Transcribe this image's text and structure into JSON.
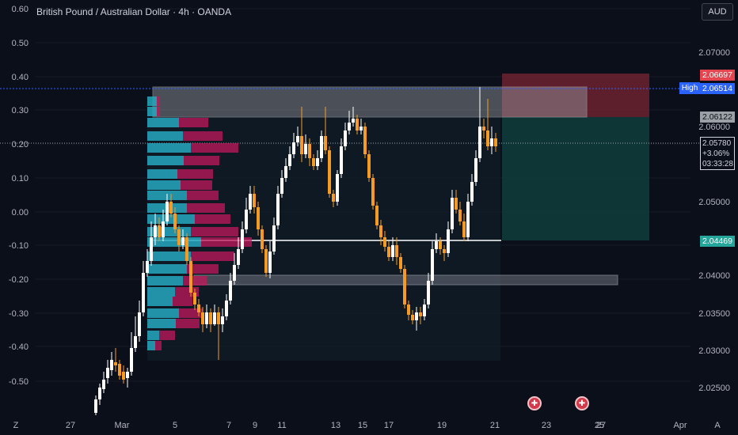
{
  "header": {
    "title": "British Pound / Australian Dollar · 4h · OANDA",
    "currency_button": "AUD"
  },
  "left_axis": {
    "labels": [
      "0.60",
      "0.50",
      "0.40",
      "0.30",
      "0.20",
      "0.10",
      "0.00",
      "-0.10",
      "-0.20",
      "-0.30",
      "-0.40",
      "-0.50"
    ]
  },
  "right_axis": {
    "labels": [
      "2.07000",
      "2.06000",
      "2.05000",
      "2.04000",
      "2.03500",
      "2.03000",
      "2.02500"
    ]
  },
  "price_labels": {
    "stop": "2.06697",
    "high_tag": "High",
    "high": "2.06514",
    "entry": "2.06122",
    "current_price": "2.05780",
    "current_change": "+3.06%",
    "countdown": "03:33:28",
    "target": "2.04469"
  },
  "time_axis": {
    "labels": [
      "Z",
      "27",
      "Mar",
      "5",
      "7",
      "9",
      "11",
      "13",
      "15",
      "17",
      "19",
      "21",
      "23",
      "25",
      "27",
      "Apr",
      "A"
    ]
  },
  "events": [
    {
      "icon": "uk-flag-icon"
    },
    {
      "icon": "uk-flag-icon"
    }
  ],
  "colors": {
    "background": "#0b0f19",
    "bull_candle": "#ffffff",
    "bear_candle": "#f59a23",
    "volume_profile_up": "#26a8c0",
    "volume_profile_down": "#c2185b",
    "stop_zone": "#7a2633",
    "target_zone": "#0f3d3c",
    "accent": "#2962ff"
  }
}
